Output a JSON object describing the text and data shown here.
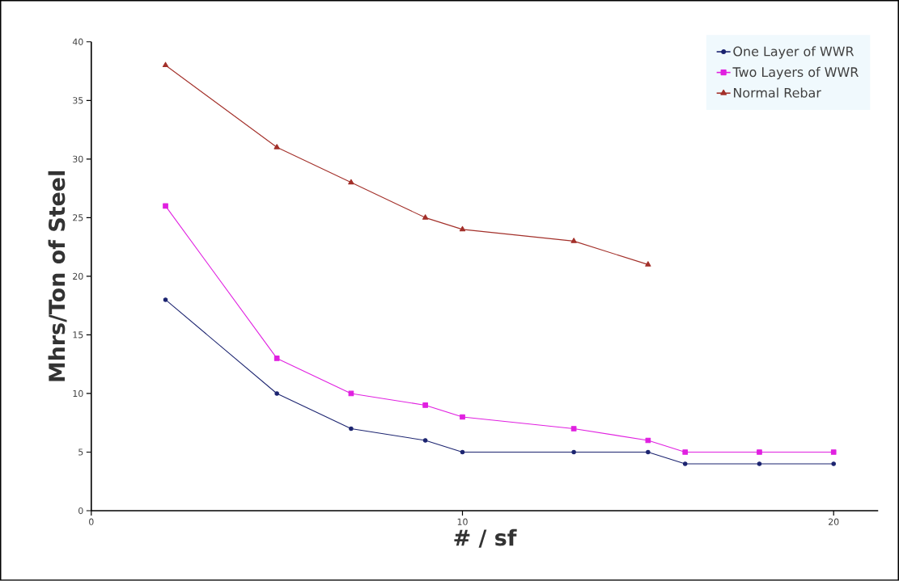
{
  "chart_data": {
    "type": "line",
    "xlabel": "# / sf",
    "ylabel": "Mhrs/Ton of Steel",
    "xlim": [
      0,
      21.2
    ],
    "xticks": [
      0,
      10,
      20
    ],
    "ylim": [
      0,
      40
    ],
    "yticks": [
      0,
      5,
      10,
      15,
      20,
      25,
      30,
      35,
      40
    ],
    "grid": false,
    "legend": "top right",
    "series": [
      {
        "name": "One Layer of WWR",
        "color": "#1c2470",
        "marker": "circle",
        "x": [
          2,
          5,
          7,
          9,
          10,
          13,
          15,
          16,
          18,
          20
        ],
        "values": [
          18,
          10,
          7,
          6,
          5,
          5,
          5,
          4,
          4,
          4
        ]
      },
      {
        "name": "Two Layers of WWR",
        "color": "#e020e0",
        "marker": "square",
        "x": [
          2,
          5,
          7,
          9,
          10,
          13,
          15,
          16,
          18,
          20
        ],
        "values": [
          26,
          13,
          10,
          9,
          8,
          7,
          6,
          5,
          5,
          5
        ]
      },
      {
        "name": "Normal Rebar",
        "color": "#a3302a",
        "marker": "triangle",
        "x": [
          2,
          5,
          7,
          9,
          10,
          13,
          15
        ],
        "values": [
          38,
          31,
          28,
          25,
          24,
          23,
          21
        ]
      }
    ]
  }
}
